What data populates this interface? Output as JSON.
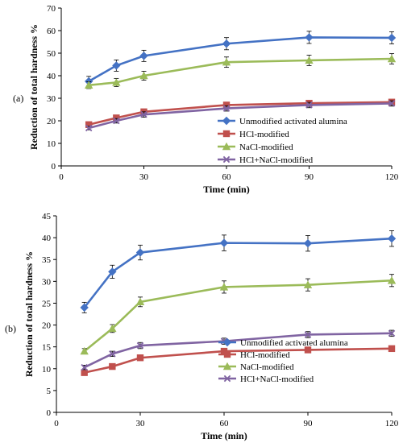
{
  "chart_data": [
    {
      "type": "line",
      "panel_label": "(a)",
      "xlabel": "Time (min)",
      "ylabel": "Reduction of total hardness %",
      "xlim": [
        0,
        120
      ],
      "ylim": [
        0,
        70
      ],
      "xticks": [
        0,
        30,
        60,
        90,
        120
      ],
      "yticks": [
        0,
        10,
        20,
        30,
        40,
        50,
        60,
        70
      ],
      "grid": false,
      "legend_position": "bottom-right",
      "x": [
        10,
        20,
        30,
        60,
        90,
        120
      ],
      "series": [
        {
          "name": "Unmodified activated alumina",
          "color": "#4472C4",
          "marker": "diamond",
          "values": [
            37.5,
            44.5,
            48.8,
            54.2,
            57.0,
            56.8
          ],
          "errors": [
            2.2,
            2.5,
            2.5,
            2.7,
            2.7,
            2.7
          ]
        },
        {
          "name": "HCl-modified",
          "color": "#C0504D",
          "marker": "square",
          "values": [
            18.3,
            21.3,
            24.0,
            27.0,
            27.8,
            28.3
          ],
          "errors": [
            1.0,
            1.0,
            1.2,
            1.2,
            1.2,
            1.2
          ]
        },
        {
          "name": "NaCl-modified",
          "color": "#9BBB59",
          "marker": "triangle",
          "values": [
            35.8,
            37.0,
            40.0,
            46.0,
            46.8,
            47.5
          ],
          "errors": [
            1.5,
            1.8,
            2.0,
            2.3,
            2.3,
            2.3
          ]
        },
        {
          "name": "HCl+NaCl-modified",
          "color": "#8064A2",
          "marker": "x",
          "values": [
            16.8,
            20.0,
            22.8,
            25.5,
            27.0,
            27.7
          ],
          "errors": [
            0.8,
            1.0,
            1.2,
            1.2,
            1.2,
            1.2
          ]
        }
      ]
    },
    {
      "type": "line",
      "panel_label": "(b)",
      "xlabel": "Time (min)",
      "ylabel": "Reduction of total hardness %",
      "xlim": [
        0,
        120
      ],
      "ylim": [
        0,
        45
      ],
      "xticks": [
        0,
        30,
        60,
        90,
        120
      ],
      "yticks": [
        0,
        5,
        10,
        15,
        20,
        25,
        30,
        35,
        40,
        45
      ],
      "grid": false,
      "legend_position": "bottom-right",
      "x": [
        10,
        20,
        30,
        60,
        90,
        120
      ],
      "series": [
        {
          "name": "Unmodified activated alumina",
          "color": "#4472C4",
          "marker": "diamond",
          "values": [
            24.0,
            32.2,
            36.6,
            38.8,
            38.7,
            39.8
          ],
          "errors": [
            1.2,
            1.5,
            1.7,
            1.8,
            1.8,
            1.8
          ]
        },
        {
          "name": "HCl-modified",
          "color": "#C0504D",
          "marker": "square",
          "values": [
            9.1,
            10.5,
            12.5,
            14.0,
            14.3,
            14.6
          ],
          "errors": [
            0.4,
            0.4,
            0.5,
            0.5,
            0.5,
            0.5
          ]
        },
        {
          "name": "NaCl-modified",
          "color": "#9BBB59",
          "marker": "triangle",
          "values": [
            14.0,
            19.2,
            25.3,
            28.7,
            29.2,
            30.2
          ],
          "errors": [
            0.6,
            0.9,
            1.1,
            1.4,
            1.4,
            1.4
          ]
        },
        {
          "name": "HCl+NaCl-modified",
          "color": "#8064A2",
          "marker": "x",
          "values": [
            10.3,
            13.4,
            15.3,
            16.3,
            17.8,
            18.1
          ],
          "errors": [
            0.5,
            0.6,
            0.7,
            0.7,
            0.7,
            0.7
          ]
        }
      ]
    }
  ]
}
